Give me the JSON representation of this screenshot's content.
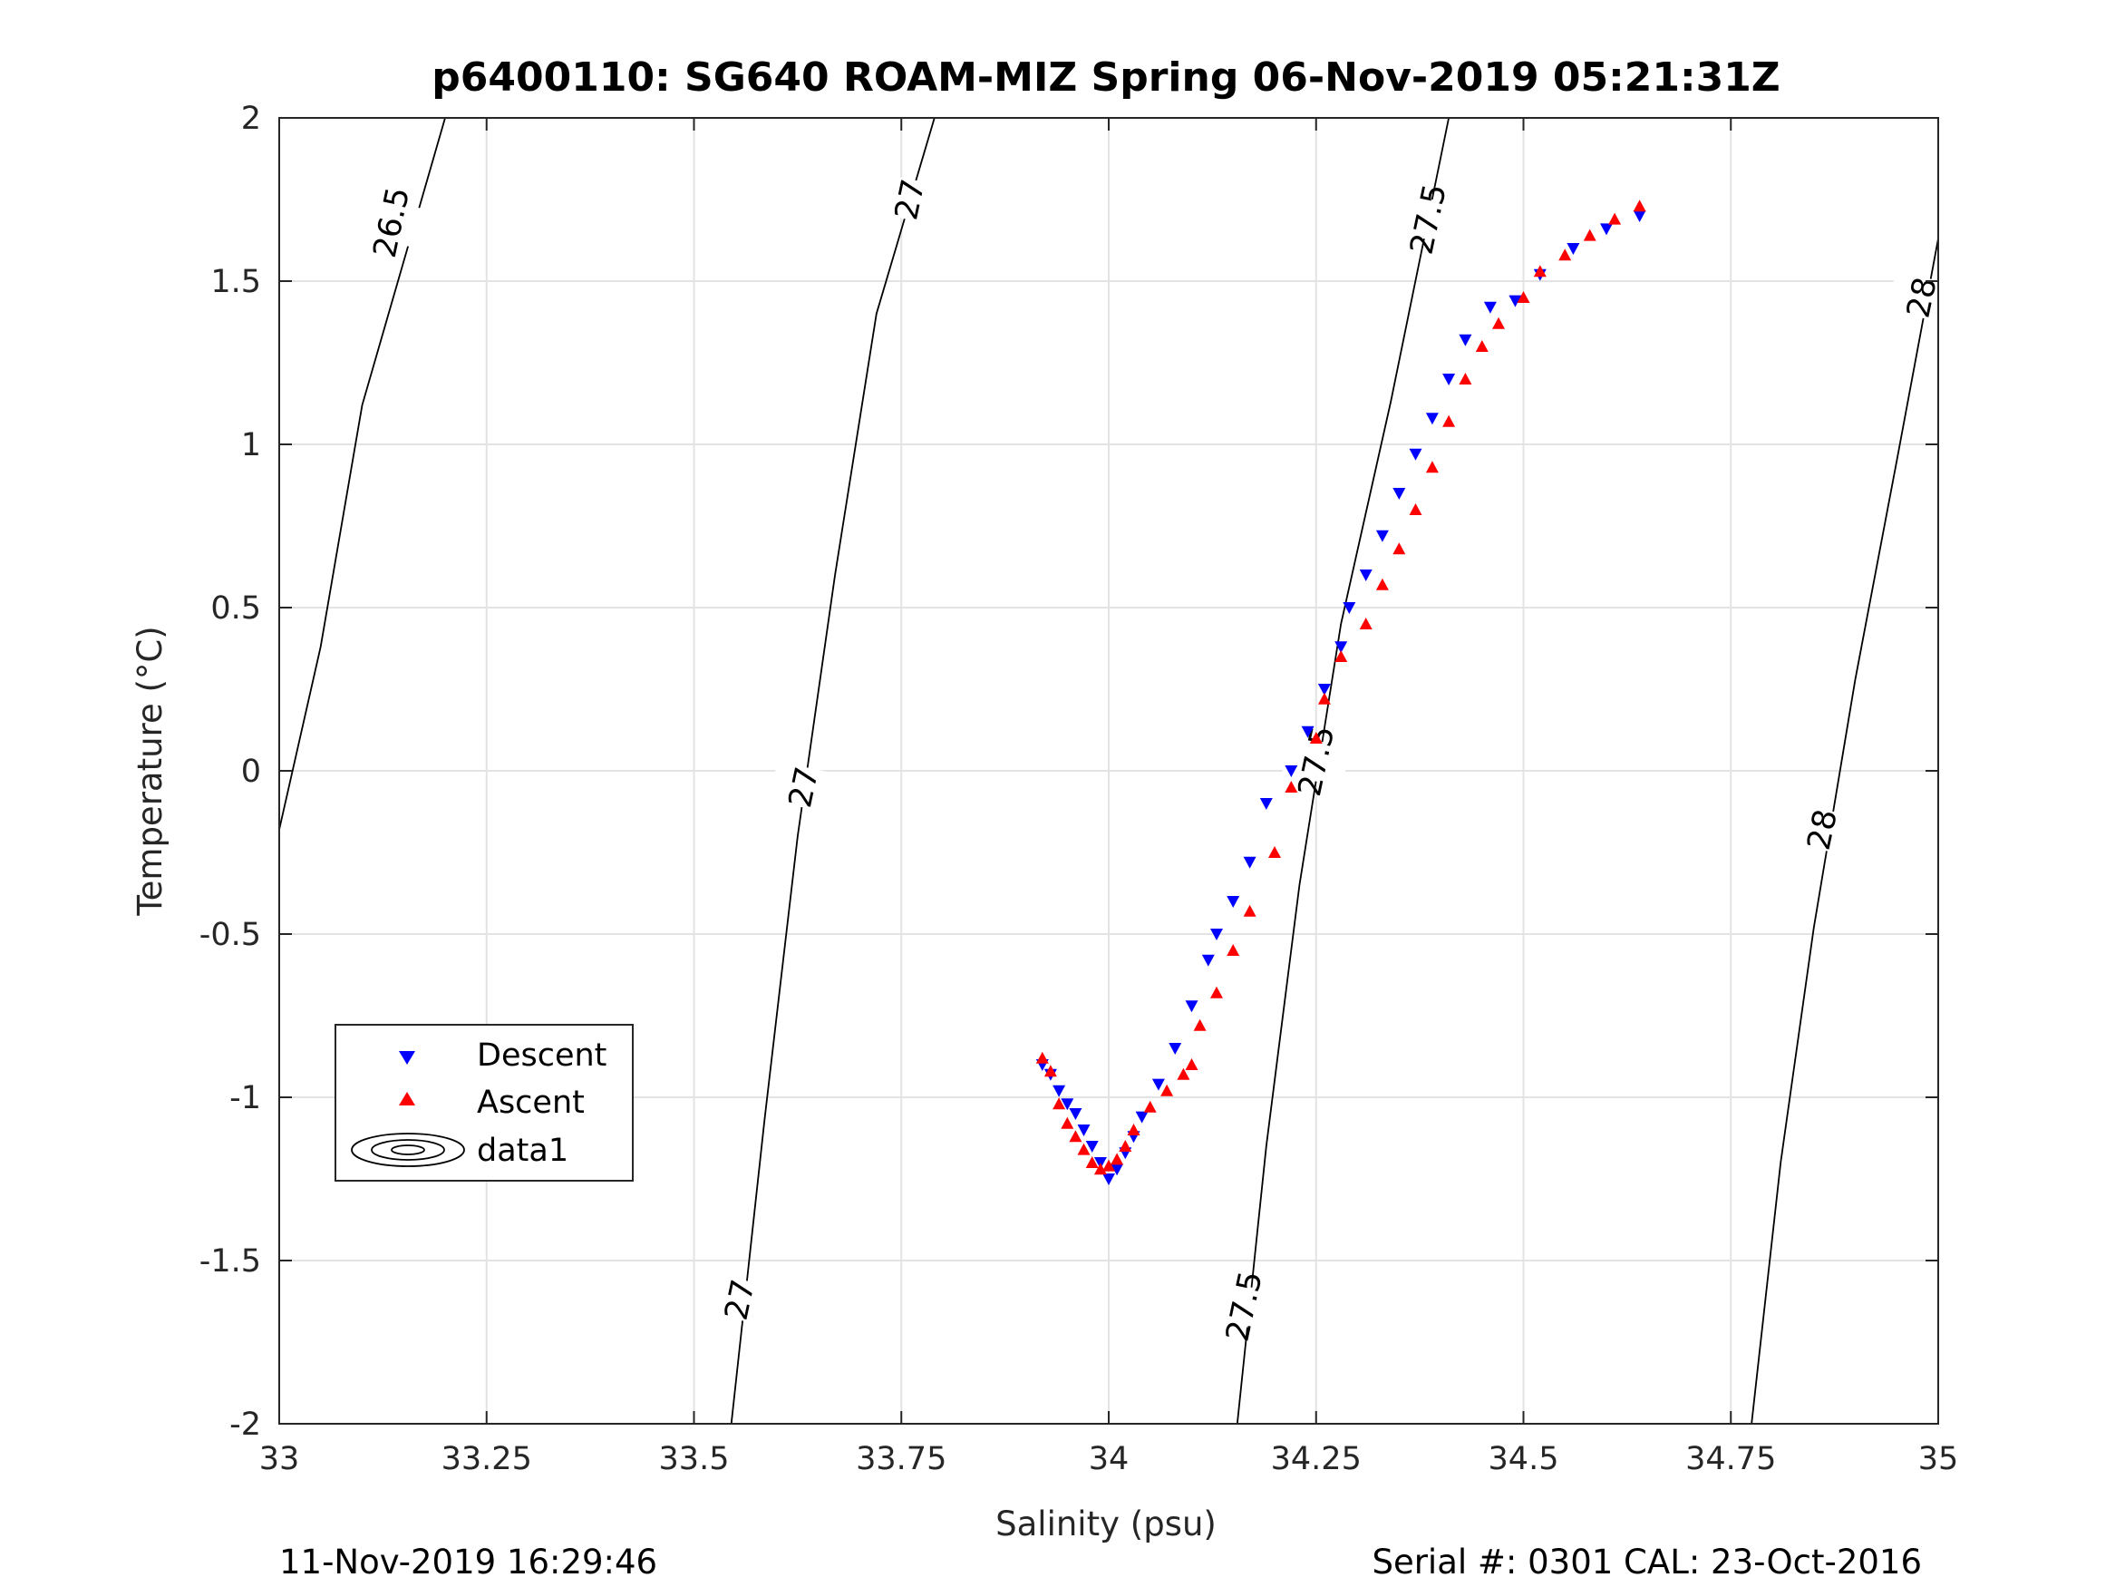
{
  "chart_data": {
    "type": "scatter",
    "title": "p6400110: SG640 ROAM-MIZ Spring 06-Nov-2019 05:21:31Z",
    "xlabel": "Salinity (psu)",
    "ylabel": "Temperature (°C)",
    "xlim": [
      33,
      35
    ],
    "ylim": [
      -2,
      2
    ],
    "xticks": [
      33,
      33.25,
      33.5,
      33.75,
      34,
      34.25,
      34.5,
      34.75,
      35
    ],
    "xtick_labels": [
      "33",
      "33.25",
      "33.5",
      "33.75",
      "34",
      "34.25",
      "34.5",
      "34.75",
      "35"
    ],
    "yticks": [
      2,
      1.5,
      1,
      0.5,
      0,
      -0.5,
      -1,
      -1.5,
      -2
    ],
    "ytick_labels": [
      "2",
      "1.5",
      "1",
      "0.5",
      "0",
      "-0.5",
      "-1",
      "-1.5",
      "-2"
    ],
    "grid": true,
    "legend_position": "lower-left",
    "legend": [
      "Descent",
      "Ascent",
      "data1"
    ],
    "series": [
      {
        "name": "Descent",
        "marker": "triangle-down",
        "color": "#0000ff",
        "points": [
          [
            33.92,
            -0.9
          ],
          [
            33.93,
            -0.93
          ],
          [
            33.94,
            -0.98
          ],
          [
            33.95,
            -1.02
          ],
          [
            33.96,
            -1.05
          ],
          [
            33.97,
            -1.1
          ],
          [
            33.98,
            -1.15
          ],
          [
            33.99,
            -1.2
          ],
          [
            34.0,
            -1.25
          ],
          [
            34.01,
            -1.22
          ],
          [
            34.02,
            -1.17
          ],
          [
            34.03,
            -1.12
          ],
          [
            34.04,
            -1.06
          ],
          [
            34.06,
            -0.96
          ],
          [
            34.08,
            -0.85
          ],
          [
            34.1,
            -0.72
          ],
          [
            34.12,
            -0.58
          ],
          [
            34.13,
            -0.5
          ],
          [
            34.15,
            -0.4
          ],
          [
            34.17,
            -0.28
          ],
          [
            34.19,
            -0.1
          ],
          [
            34.22,
            0.0
          ],
          [
            34.24,
            0.12
          ],
          [
            34.26,
            0.25
          ],
          [
            34.28,
            0.38
          ],
          [
            34.29,
            0.5
          ],
          [
            34.31,
            0.6
          ],
          [
            34.33,
            0.72
          ],
          [
            34.35,
            0.85
          ],
          [
            34.37,
            0.97
          ],
          [
            34.39,
            1.08
          ],
          [
            34.41,
            1.2
          ],
          [
            34.43,
            1.32
          ],
          [
            34.46,
            1.42
          ],
          [
            34.49,
            1.44
          ],
          [
            34.52,
            1.52
          ],
          [
            34.56,
            1.6
          ],
          [
            34.6,
            1.66
          ],
          [
            34.64,
            1.7
          ]
        ]
      },
      {
        "name": "Ascent",
        "marker": "triangle-up",
        "color": "#ff0000",
        "points": [
          [
            33.92,
            -0.88
          ],
          [
            33.93,
            -0.92
          ],
          [
            33.94,
            -1.02
          ],
          [
            33.95,
            -1.08
          ],
          [
            33.96,
            -1.12
          ],
          [
            33.97,
            -1.16
          ],
          [
            33.98,
            -1.2
          ],
          [
            33.99,
            -1.22
          ],
          [
            34.0,
            -1.21
          ],
          [
            34.01,
            -1.19
          ],
          [
            34.02,
            -1.15
          ],
          [
            34.03,
            -1.1
          ],
          [
            34.05,
            -1.03
          ],
          [
            34.07,
            -0.98
          ],
          [
            34.09,
            -0.93
          ],
          [
            34.1,
            -0.9
          ],
          [
            34.11,
            -0.78
          ],
          [
            34.13,
            -0.68
          ],
          [
            34.15,
            -0.55
          ],
          [
            34.17,
            -0.43
          ],
          [
            34.2,
            -0.25
          ],
          [
            34.22,
            -0.05
          ],
          [
            34.25,
            0.1
          ],
          [
            34.26,
            0.22
          ],
          [
            34.28,
            0.35
          ],
          [
            34.31,
            0.45
          ],
          [
            34.33,
            0.57
          ],
          [
            34.35,
            0.68
          ],
          [
            34.37,
            0.8
          ],
          [
            34.39,
            0.93
          ],
          [
            34.41,
            1.07
          ],
          [
            34.43,
            1.2
          ],
          [
            34.45,
            1.3
          ],
          [
            34.47,
            1.37
          ],
          [
            34.5,
            1.45
          ],
          [
            34.52,
            1.53
          ],
          [
            34.55,
            1.58
          ],
          [
            34.58,
            1.64
          ],
          [
            34.61,
            1.69
          ],
          [
            34.64,
            1.73
          ]
        ]
      }
    ],
    "contours": [
      {
        "name": "data1",
        "lines": [
          {
            "level": "26.5",
            "points": [
              [
                33.0,
                -0.18
              ],
              [
                33.05,
                0.38
              ],
              [
                33.1,
                1.12
              ],
              [
                33.2,
                2.0
              ]
            ],
            "labels": [
              [
                33.135,
                1.68
              ]
            ]
          },
          {
            "level": "27",
            "points": [
              [
                33.545,
                -2.0
              ],
              [
                33.585,
                -1.07
              ],
              [
                33.625,
                -0.2
              ],
              [
                33.67,
                0.6
              ],
              [
                33.72,
                1.4
              ],
              [
                33.79,
                2.0
              ]
            ],
            "labels": [
              [
                33.555,
                -1.62
              ],
              [
                33.632,
                -0.05
              ],
              [
                33.76,
                1.75
              ]
            ]
          },
          {
            "level": "27.5",
            "points": [
              [
                34.155,
                -2.0
              ],
              [
                34.19,
                -1.15
              ],
              [
                34.23,
                -0.35
              ],
              [
                34.28,
                0.45
              ],
              [
                34.34,
                1.13
              ],
              [
                34.41,
                2.0
              ]
            ],
            "labels": [
              [
                34.163,
                -1.64
              ],
              [
                34.25,
                0.03
              ],
              [
                34.385,
                1.69
              ]
            ]
          },
          {
            "level": "28",
            "points": [
              [
                34.775,
                -2.0
              ],
              [
                34.81,
                -1.2
              ],
              [
                34.85,
                -0.48
              ],
              [
                34.9,
                0.28
              ],
              [
                34.95,
                0.95
              ],
              [
                35.0,
                1.63
              ]
            ],
            "labels": [
              [
                34.86,
                -0.18
              ],
              [
                34.98,
                1.45
              ]
            ]
          }
        ]
      }
    ]
  },
  "footer": {
    "timestamp": "11-Nov-2019 16:29:46",
    "serial": "Serial #: 0301  CAL: 23-Oct-2016"
  }
}
